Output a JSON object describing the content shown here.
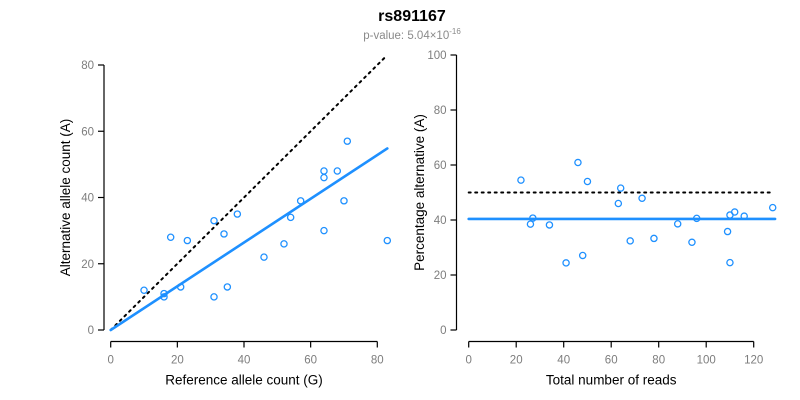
{
  "header": {
    "title": "rs891167",
    "subtitle_prefix": "p-value: 5.04×10",
    "subtitle_exponent": "-16"
  },
  "colors": {
    "accent_blue": "#1E90FF",
    "line_black": "#000000",
    "tick_label_gray": "#7d7d7d",
    "subtitle_gray": "#8a8a8a"
  },
  "chart_data": [
    {
      "type": "scatter",
      "name": "allele-counts",
      "xlabel": "Reference allele count (G)",
      "ylabel": "Alternative allele count (A)",
      "xlim": [
        0,
        80
      ],
      "ylim": [
        0,
        80
      ],
      "xticks": [
        0,
        20,
        40,
        60,
        80
      ],
      "yticks": [
        0,
        20,
        40,
        60,
        80
      ],
      "grid": false,
      "points": [
        [
          10,
          12
        ],
        [
          16,
          10
        ],
        [
          16,
          11
        ],
        [
          21,
          13
        ],
        [
          31,
          10
        ],
        [
          35,
          13
        ],
        [
          18,
          28
        ],
        [
          23,
          27
        ],
        [
          31,
          33
        ],
        [
          34,
          29
        ],
        [
          38,
          35
        ],
        [
          46,
          22
        ],
        [
          52,
          26
        ],
        [
          54,
          34
        ],
        [
          57,
          39
        ],
        [
          64,
          46
        ],
        [
          64,
          48
        ],
        [
          64,
          30
        ],
        [
          68,
          48
        ],
        [
          70,
          39
        ],
        [
          71,
          57
        ],
        [
          83,
          27
        ]
      ],
      "lines": [
        {
          "name": "identity-line",
          "style": "dotted",
          "color": "#000000",
          "from": [
            0,
            0
          ],
          "to": [
            83,
            83
          ]
        },
        {
          "name": "fit-line",
          "style": "solid",
          "color": "#1E90FF",
          "from": [
            0,
            0
          ],
          "to": [
            83,
            54.8
          ]
        }
      ]
    },
    {
      "type": "scatter",
      "name": "percentage-vs-reads",
      "xlabel": "Total number of reads",
      "ylabel": "Percentage alternative (A)",
      "xlim": [
        0,
        120
      ],
      "ylim": [
        0,
        100
      ],
      "xticks": [
        0,
        20,
        40,
        60,
        80,
        100,
        120
      ],
      "yticks": [
        0,
        20,
        40,
        60,
        80,
        100
      ],
      "grid": false,
      "points": [
        [
          22,
          54.5
        ],
        [
          26,
          38.5
        ],
        [
          27,
          40.7
        ],
        [
          34,
          38.2
        ],
        [
          41,
          24.4
        ],
        [
          48,
          27.1
        ],
        [
          46,
          60.9
        ],
        [
          50,
          54.0
        ],
        [
          64,
          51.6
        ],
        [
          63,
          46.0
        ],
        [
          73,
          47.9
        ],
        [
          68,
          32.4
        ],
        [
          78,
          33.3
        ],
        [
          88,
          38.6
        ],
        [
          96,
          40.6
        ],
        [
          110,
          41.8
        ],
        [
          112,
          42.9
        ],
        [
          94,
          31.9
        ],
        [
          116,
          41.4
        ],
        [
          109,
          35.8
        ],
        [
          128,
          44.5
        ],
        [
          110,
          24.5
        ]
      ],
      "lines": [
        {
          "name": "expected-50pct-line",
          "style": "dotted",
          "color": "#000000",
          "from": [
            0,
            50
          ],
          "to": [
            128,
            50
          ]
        },
        {
          "name": "mean-pct-line",
          "style": "solid",
          "color": "#1E90FF",
          "from": [
            0,
            40.4
          ],
          "to": [
            129,
            40.4
          ]
        }
      ]
    }
  ]
}
